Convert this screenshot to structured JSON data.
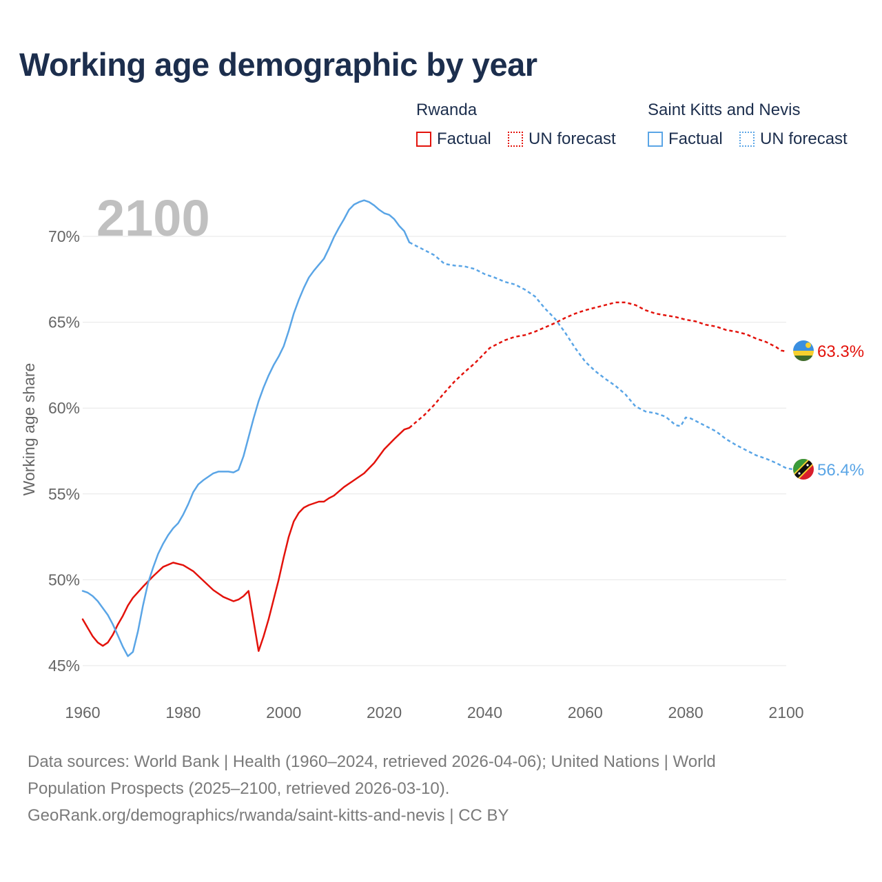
{
  "title": "Working age demographic by year",
  "legend": {
    "groups": [
      {
        "name": "Rwanda",
        "factual_label": "Factual",
        "forecast_label": "UN forecast",
        "color": "#e3120b"
      },
      {
        "name": "Saint Kitts and Nevis",
        "factual_label": "Factual",
        "forecast_label": "UN forecast",
        "color": "#5aa5e6"
      }
    ]
  },
  "sources": {
    "line1": "Data sources: World Bank | Health (1960–2024, retrieved 2026-04-06); United Nations | World",
    "line2": "Population Prospects (2025–2100, retrieved 2026-03-10).",
    "line3": "GeoRank.org/demographics/rwanda/saint-kitts-and-nevis | CC BY"
  },
  "chart_data": {
    "type": "line",
    "year_label": "2100",
    "ylabel": "Working age share",
    "xlim": [
      1960,
      2100
    ],
    "ylim": [
      44.5,
      72.5
    ],
    "x_ticks": [
      1960,
      1980,
      2000,
      2020,
      2040,
      2060,
      2080,
      2100
    ],
    "y_ticks": [
      45,
      50,
      55,
      60,
      65,
      70
    ],
    "y_tick_suffix": "%",
    "forecast_start_year": 2025,
    "series": [
      {
        "name": "Rwanda",
        "color": "#e3120b",
        "end_label": "63.3%",
        "flag": "rwanda",
        "points": [
          [
            1960,
            47.7
          ],
          [
            1961,
            47.2
          ],
          [
            1962,
            46.7
          ],
          [
            1963,
            46.35
          ],
          [
            1964,
            46.15
          ],
          [
            1965,
            46.35
          ],
          [
            1966,
            46.8
          ],
          [
            1967,
            47.4
          ],
          [
            1968,
            47.9
          ],
          [
            1969,
            48.5
          ],
          [
            1970,
            48.95
          ],
          [
            1972,
            49.6
          ],
          [
            1974,
            50.2
          ],
          [
            1976,
            50.75
          ],
          [
            1978,
            51.0
          ],
          [
            1980,
            50.85
          ],
          [
            1982,
            50.5
          ],
          [
            1984,
            49.95
          ],
          [
            1986,
            49.4
          ],
          [
            1988,
            49.0
          ],
          [
            1990,
            48.75
          ],
          [
            1991,
            48.85
          ],
          [
            1992,
            49.05
          ],
          [
            1993,
            49.35
          ],
          [
            1994,
            47.6
          ],
          [
            1995,
            45.85
          ],
          [
            1996,
            46.7
          ],
          [
            1997,
            47.7
          ],
          [
            1998,
            48.85
          ],
          [
            1999,
            50.0
          ],
          [
            2000,
            51.3
          ],
          [
            2001,
            52.5
          ],
          [
            2002,
            53.4
          ],
          [
            2003,
            53.9
          ],
          [
            2004,
            54.2
          ],
          [
            2005,
            54.35
          ],
          [
            2006,
            54.45
          ],
          [
            2007,
            54.55
          ],
          [
            2008,
            54.55
          ],
          [
            2009,
            54.75
          ],
          [
            2010,
            54.9
          ],
          [
            2012,
            55.4
          ],
          [
            2014,
            55.8
          ],
          [
            2016,
            56.2
          ],
          [
            2018,
            56.8
          ],
          [
            2020,
            57.6
          ],
          [
            2022,
            58.2
          ],
          [
            2024,
            58.75
          ],
          [
            2025,
            58.85
          ],
          [
            2026,
            59.1
          ],
          [
            2028,
            59.6
          ],
          [
            2030,
            60.2
          ],
          [
            2032,
            60.9
          ],
          [
            2034,
            61.55
          ],
          [
            2036,
            62.1
          ],
          [
            2038,
            62.6
          ],
          [
            2040,
            63.2
          ],
          [
            2041,
            63.5
          ],
          [
            2042,
            63.65
          ],
          [
            2044,
            63.95
          ],
          [
            2046,
            64.15
          ],
          [
            2048,
            64.25
          ],
          [
            2050,
            64.45
          ],
          [
            2052,
            64.7
          ],
          [
            2054,
            64.95
          ],
          [
            2056,
            65.25
          ],
          [
            2058,
            65.5
          ],
          [
            2060,
            65.7
          ],
          [
            2062,
            65.85
          ],
          [
            2064,
            66.0
          ],
          [
            2066,
            66.15
          ],
          [
            2068,
            66.15
          ],
          [
            2070,
            66.0
          ],
          [
            2072,
            65.7
          ],
          [
            2074,
            65.5
          ],
          [
            2076,
            65.4
          ],
          [
            2078,
            65.3
          ],
          [
            2080,
            65.15
          ],
          [
            2082,
            65.05
          ],
          [
            2084,
            64.85
          ],
          [
            2086,
            64.75
          ],
          [
            2088,
            64.55
          ],
          [
            2090,
            64.45
          ],
          [
            2092,
            64.3
          ],
          [
            2094,
            64.05
          ],
          [
            2096,
            63.85
          ],
          [
            2098,
            63.55
          ],
          [
            2099,
            63.35
          ],
          [
            2100,
            63.3
          ]
        ]
      },
      {
        "name": "Saint Kitts and Nevis",
        "color": "#5aa5e6",
        "end_label": "56.4%",
        "flag": "saint-kitts-and-nevis",
        "points": [
          [
            1960,
            49.35
          ],
          [
            1961,
            49.25
          ],
          [
            1962,
            49.05
          ],
          [
            1963,
            48.75
          ],
          [
            1964,
            48.35
          ],
          [
            1965,
            47.95
          ],
          [
            1966,
            47.4
          ],
          [
            1967,
            46.75
          ],
          [
            1968,
            46.1
          ],
          [
            1969,
            45.55
          ],
          [
            1970,
            45.8
          ],
          [
            1971,
            47.0
          ],
          [
            1972,
            48.5
          ],
          [
            1973,
            49.8
          ],
          [
            1974,
            50.7
          ],
          [
            1975,
            51.5
          ],
          [
            1976,
            52.1
          ],
          [
            1977,
            52.6
          ],
          [
            1978,
            53.0
          ],
          [
            1979,
            53.3
          ],
          [
            1980,
            53.8
          ],
          [
            1981,
            54.4
          ],
          [
            1982,
            55.1
          ],
          [
            1983,
            55.55
          ],
          [
            1984,
            55.8
          ],
          [
            1985,
            56.0
          ],
          [
            1986,
            56.2
          ],
          [
            1987,
            56.3
          ],
          [
            1988,
            56.3
          ],
          [
            1989,
            56.3
          ],
          [
            1990,
            56.25
          ],
          [
            1991,
            56.4
          ],
          [
            1992,
            57.2
          ],
          [
            1993,
            58.3
          ],
          [
            1994,
            59.4
          ],
          [
            1995,
            60.4
          ],
          [
            1996,
            61.2
          ],
          [
            1997,
            61.9
          ],
          [
            1998,
            62.5
          ],
          [
            1999,
            63.0
          ],
          [
            2000,
            63.6
          ],
          [
            2001,
            64.5
          ],
          [
            2002,
            65.5
          ],
          [
            2003,
            66.3
          ],
          [
            2004,
            67.0
          ],
          [
            2005,
            67.6
          ],
          [
            2006,
            68.0
          ],
          [
            2007,
            68.35
          ],
          [
            2008,
            68.7
          ],
          [
            2009,
            69.3
          ],
          [
            2010,
            69.95
          ],
          [
            2011,
            70.5
          ],
          [
            2012,
            71.0
          ],
          [
            2013,
            71.55
          ],
          [
            2014,
            71.85
          ],
          [
            2015,
            72.0
          ],
          [
            2016,
            72.1
          ],
          [
            2017,
            72.0
          ],
          [
            2018,
            71.8
          ],
          [
            2019,
            71.55
          ],
          [
            2020,
            71.35
          ],
          [
            2021,
            71.25
          ],
          [
            2022,
            71.0
          ],
          [
            2023,
            70.6
          ],
          [
            2024,
            70.3
          ],
          [
            2025,
            69.65
          ],
          [
            2026,
            69.5
          ],
          [
            2028,
            69.2
          ],
          [
            2030,
            68.9
          ],
          [
            2032,
            68.4
          ],
          [
            2034,
            68.3
          ],
          [
            2036,
            68.25
          ],
          [
            2038,
            68.1
          ],
          [
            2040,
            67.8
          ],
          [
            2042,
            67.6
          ],
          [
            2044,
            67.35
          ],
          [
            2046,
            67.2
          ],
          [
            2048,
            66.9
          ],
          [
            2050,
            66.5
          ],
          [
            2052,
            65.8
          ],
          [
            2054,
            65.2
          ],
          [
            2056,
            64.4
          ],
          [
            2058,
            63.5
          ],
          [
            2060,
            62.7
          ],
          [
            2062,
            62.15
          ],
          [
            2064,
            61.7
          ],
          [
            2066,
            61.3
          ],
          [
            2068,
            60.8
          ],
          [
            2070,
            60.1
          ],
          [
            2072,
            59.8
          ],
          [
            2074,
            59.7
          ],
          [
            2076,
            59.5
          ],
          [
            2078,
            59.0
          ],
          [
            2079,
            58.95
          ],
          [
            2080,
            59.45
          ],
          [
            2081,
            59.4
          ],
          [
            2082,
            59.25
          ],
          [
            2084,
            58.95
          ],
          [
            2086,
            58.65
          ],
          [
            2088,
            58.2
          ],
          [
            2090,
            57.85
          ],
          [
            2092,
            57.55
          ],
          [
            2094,
            57.25
          ],
          [
            2096,
            57.05
          ],
          [
            2098,
            56.8
          ],
          [
            2100,
            56.5
          ],
          [
            2102,
            56.4
          ]
        ]
      }
    ]
  }
}
